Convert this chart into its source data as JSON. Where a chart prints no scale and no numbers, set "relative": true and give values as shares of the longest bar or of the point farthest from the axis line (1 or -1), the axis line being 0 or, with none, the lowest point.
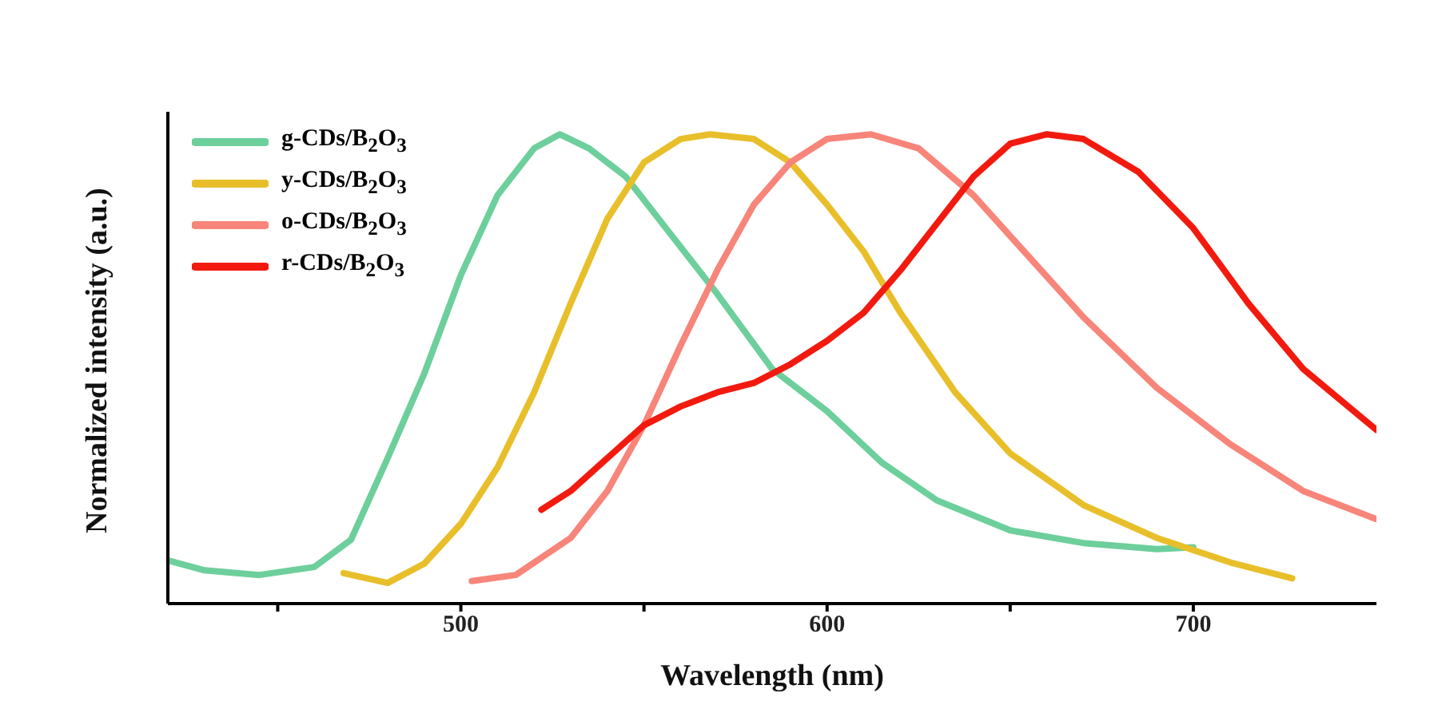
{
  "chart_data": {
    "type": "line",
    "xlabel": "Wavelength (nm)",
    "ylabel": "Normalized intensity (a.u.)",
    "relative": true,
    "xlim": [
      420,
      750
    ],
    "xticks": [
      {
        "value": 450,
        "label": null
      },
      500,
      {
        "value": 550,
        "label": null
      },
      600,
      {
        "value": 650,
        "label": null
      },
      700
    ],
    "legend": "top left",
    "marker": "none",
    "line_style": "solid",
    "grid": false,
    "series": [
      {
        "name": "g-CDs/B$_{2}$O$_{3}$",
        "color": "#6dcf9b",
        "x": [
          420,
          430,
          445,
          460,
          470,
          480,
          490,
          500,
          510,
          520,
          527,
          535,
          545,
          555,
          570,
          585,
          600,
          615,
          630,
          650,
          670,
          690,
          700
        ],
        "values": [
          0.092,
          0.071,
          0.061,
          0.078,
          0.136,
          0.31,
          0.49,
          0.7,
          0.87,
          0.97,
          1.0,
          0.97,
          0.91,
          0.81,
          0.66,
          0.5,
          0.41,
          0.3,
          0.22,
          0.156,
          0.129,
          0.116,
          0.12
        ]
      },
      {
        "name": "y-CDs/B$_{2}$O$_{3}$",
        "color": "#e8bf2a",
        "x": [
          468,
          480,
          490,
          500,
          510,
          520,
          530,
          540,
          550,
          560,
          568,
          580,
          590,
          600,
          610,
          620,
          635,
          650,
          670,
          690,
          710,
          727
        ],
        "values": [
          0.065,
          0.044,
          0.085,
          0.17,
          0.29,
          0.45,
          0.64,
          0.82,
          0.94,
          0.99,
          1.0,
          0.99,
          0.94,
          0.85,
          0.75,
          0.62,
          0.45,
          0.32,
          0.21,
          0.14,
          0.088,
          0.054
        ]
      },
      {
        "name": "o-CDs/B$_{2}$O$_{3}$",
        "color": "#f7857a",
        "x": [
          503,
          515,
          530,
          540,
          550,
          560,
          570,
          580,
          590,
          600,
          612,
          625,
          640,
          655,
          670,
          690,
          710,
          730,
          750
        ],
        "values": [
          0.048,
          0.061,
          0.14,
          0.24,
          0.38,
          0.55,
          0.71,
          0.85,
          0.94,
          0.99,
          1.0,
          0.97,
          0.87,
          0.74,
          0.61,
          0.46,
          0.34,
          0.24,
          0.18
        ]
      },
      {
        "name": "r-CDs/B$_{2}$O$_{3}$",
        "color": "#f21a0f",
        "x": [
          522,
          530,
          540,
          550,
          560,
          570,
          580,
          590,
          600,
          610,
          620,
          630,
          640,
          650,
          660,
          670,
          685,
          700,
          715,
          730,
          750
        ],
        "values": [
          0.2,
          0.24,
          0.31,
          0.38,
          0.42,
          0.45,
          0.47,
          0.51,
          0.56,
          0.62,
          0.71,
          0.81,
          0.91,
          0.98,
          1.0,
          0.99,
          0.92,
          0.8,
          0.64,
          0.5,
          0.37
        ]
      }
    ]
  }
}
